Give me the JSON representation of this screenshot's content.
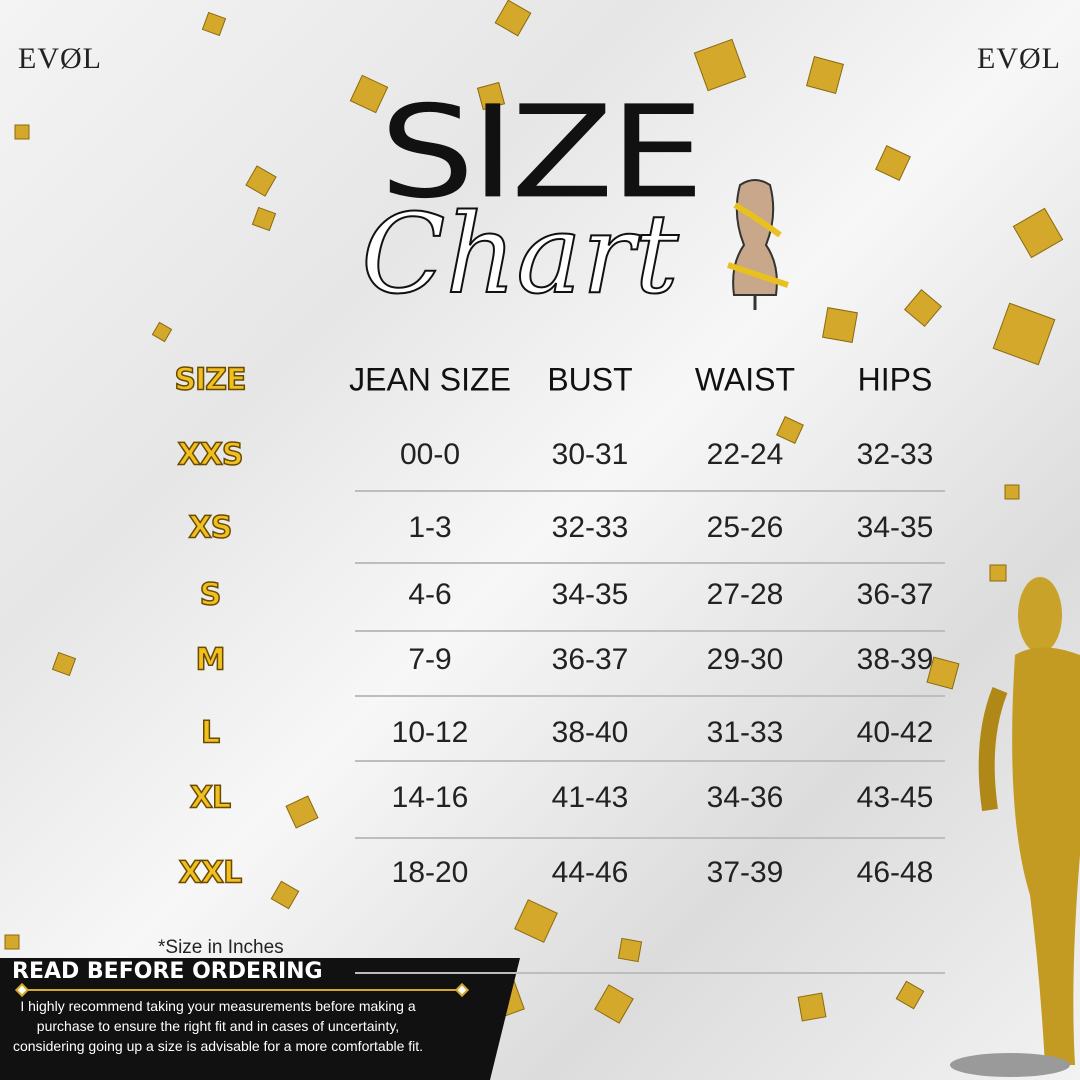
{
  "brand": {
    "left": "EVØL",
    "right": "EVØL"
  },
  "title": {
    "main": "SIZE",
    "script": "Chart"
  },
  "table": {
    "header": [
      "SIZE",
      "JEAN SIZE",
      "BUST",
      "WAIST",
      "HIPS"
    ],
    "rows": [
      [
        "XXS",
        "00-0",
        "30-31",
        "22-24",
        "32-33"
      ],
      [
        "XS",
        "1-3",
        "32-33",
        "25-26",
        "34-35"
      ],
      [
        "S",
        "4-6",
        "34-35",
        "27-28",
        "36-37"
      ],
      [
        "M",
        "7-9",
        "36-37",
        "29-30",
        "38-39"
      ],
      [
        "L",
        "10-12",
        "38-40",
        "31-33",
        "40-42"
      ],
      [
        "XL",
        "14-16",
        "41-43",
        "34-36",
        "43-45"
      ],
      [
        "XXL",
        "18-20",
        "44-46",
        "37-39",
        "46-48"
      ]
    ]
  },
  "note": "*Size in Inches",
  "notice": {
    "heading": "READ BEFORE ORDERING",
    "body": "I highly recommend taking your measurements before making a purchase to ensure the right fit and in cases of uncertainty, considering going up a size is advisable for a more comfortable fit."
  }
}
